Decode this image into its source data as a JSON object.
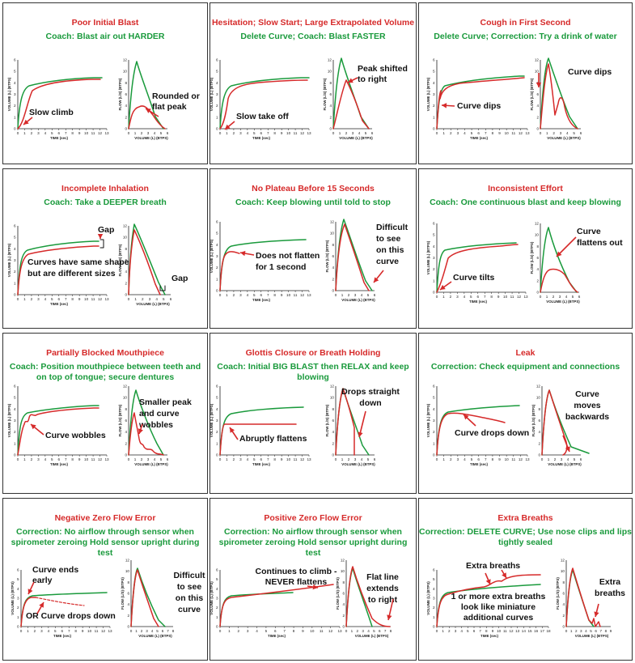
{
  "axes": {
    "volume_ylabel": "VOLUME (L) (BTPS)",
    "flow_ylabel": "FLOW (L/S) (BTPS)",
    "time_xlabel": "TIME (sec)",
    "volume_xlabel": "VOLUME (L) (BTPS)",
    "time_ticks": [
      "0",
      "1",
      "2",
      "3",
      "4",
      "5",
      "6",
      "7",
      "8",
      "9",
      "10",
      "11",
      "12",
      "13"
    ],
    "volume_ticks": [
      "0",
      "1",
      "2",
      "3",
      "4",
      "5",
      "6"
    ],
    "flow_ticks": [
      "0",
      "2",
      "4",
      "6",
      "8",
      "10",
      "12"
    ],
    "vt_ticks": [
      "0",
      "1",
      "2",
      "3",
      "4",
      "5",
      "6"
    ]
  },
  "panels": [
    {
      "title": "Poor Initial Blast",
      "subtitle": "Coach: Blast air out HARDER",
      "left_note": "Slow climb",
      "right_note": "Rounded or flat peak"
    },
    {
      "title": "Hesitation; Slow Start; Large Extrapolated Volume",
      "subtitle": "Delete Curve;  Coach: Blast FASTER",
      "left_note": "Slow take off",
      "right_note": "Peak shifted to right"
    },
    {
      "title": "Cough in First Second",
      "subtitle": "Delete Curve;  Correction: Try a drink of water",
      "left_note": "Curve dips",
      "right_note": "Curve dips"
    },
    {
      "title": "Incomplete Inhalation",
      "subtitle": "Coach: Take a DEEPER breath",
      "left_note": "Curves have same shape but are different sizes",
      "left_note2": "Gap",
      "right_note": "Gap"
    },
    {
      "title": "No Plateau Before 15 Seconds",
      "subtitle": "Coach: Keep blowing until told to stop",
      "left_note": "Does not flatten for 1 second",
      "right_note": "Difficult to see on this curve"
    },
    {
      "title": "Inconsistent Effort",
      "subtitle": "Coach:  One continuous blast and keep blowing",
      "left_note": "Curve tilts",
      "right_note": "Curve flattens out"
    },
    {
      "title": "Partially Blocked Mouthpiece",
      "subtitle": "Coach:  Position mouthpiece between teeth and on top of tongue;  secure dentures",
      "left_note": "Curve wobbles",
      "right_note": "Smaller peak and curve wobbles"
    },
    {
      "title": "Glottis Closure or Breath Holding",
      "subtitle": "Coach: Initial BIG BLAST then RELAX and keep blowing",
      "left_note": "Abruptly flattens",
      "right_note": "Drops straight down"
    },
    {
      "title": "Leak",
      "subtitle": "Correction: Check equipment and connections",
      "left_note": "Curve drops down",
      "right_note": "Curve moves backwards"
    },
    {
      "title": "Negative Zero Flow Error",
      "subtitle": "Correction: No airflow through sensor when spirometer zeroing Hold sensor upright during test",
      "left_note": "Curve ends early",
      "left_note2": "OR Curve drops down",
      "right_note": "Difficult to see on this curve"
    },
    {
      "title": "Positive Zero Flow Error",
      "subtitle": "Correction: No airflow through sensor when spirometer zeroing Hold sensor upright during test",
      "left_note": "Continues to climb - NEVER flattens",
      "right_note": "Flat line extends to right"
    },
    {
      "title": "Extra Breaths",
      "subtitle": "Correction: DELETE CURVE; Use nose clips and lips tightly sealed",
      "left_note": "Extra breaths",
      "left_note2": "1 or more extra breaths look like miniature additional curves",
      "right_note": "Extra breaths"
    }
  ],
  "colors": {
    "red": "#d62a2a",
    "green": "#1a9a3c",
    "title_red": "#d62a2a",
    "subtitle_green": "#1a9a3c"
  }
}
